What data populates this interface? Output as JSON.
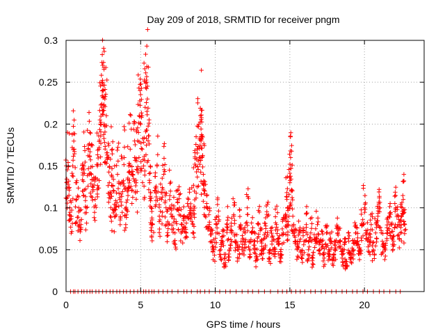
{
  "chart_data": {
    "type": "scatter",
    "title": "Day 209 of 2018, SRMTID for receiver pngm",
    "xlabel": "GPS time / hours",
    "ylabel": "SRMTID / TECUs",
    "xlim": [
      0,
      24
    ],
    "ylim": [
      0,
      0.3
    ],
    "xticks": [
      0,
      5,
      10,
      15,
      20
    ],
    "xtick_labels": [
      "0",
      "5",
      "10",
      "15",
      "20"
    ],
    "yticks": [
      0,
      0.05,
      0.1,
      0.15,
      0.2,
      0.25,
      0.3
    ],
    "ytick_labels": [
      "0",
      "0.05",
      "0.1",
      "0.15",
      "0.2",
      "0.25",
      "0.3"
    ],
    "grid": true,
    "marker": "+",
    "marker_color": "#ff0000",
    "series": [
      {
        "name": "SRMTID",
        "x": [
          0.05,
          0.15,
          0.25,
          0.35,
          0.45,
          0.55,
          0.7,
          0.85,
          1.0,
          1.1,
          1.2,
          1.35,
          1.5,
          1.6,
          1.7,
          1.8,
          1.95,
          2.1,
          2.2,
          2.3,
          2.4,
          2.45,
          2.5,
          2.55,
          2.6,
          2.7,
          2.8,
          2.9,
          3.0,
          3.1,
          3.2,
          3.3,
          3.45,
          3.6,
          3.75,
          3.9,
          4.0,
          4.1,
          4.2,
          4.3,
          4.45,
          4.6,
          4.7,
          4.8,
          4.9,
          5.0,
          5.1,
          5.2,
          5.3,
          5.4,
          5.45,
          5.5,
          5.6,
          5.7,
          5.8,
          5.95,
          6.1,
          6.25,
          6.4,
          6.55,
          6.7,
          6.85,
          7.0,
          7.15,
          7.3,
          7.45,
          7.6,
          7.75,
          7.9,
          8.05,
          8.2,
          8.35,
          8.5,
          8.6,
          8.7,
          8.8,
          8.9,
          9.0,
          9.05,
          9.1,
          9.2,
          9.3,
          9.45,
          9.6,
          9.75,
          9.9,
          10.05,
          10.2,
          10.35,
          10.5,
          10.65,
          10.8,
          10.95,
          11.1,
          11.25,
          11.4,
          11.55,
          11.7,
          11.85,
          12.0,
          12.15,
          12.3,
          12.45,
          12.6,
          12.75,
          12.9,
          13.05,
          13.2,
          13.35,
          13.5,
          13.65,
          13.8,
          13.95,
          14.1,
          14.25,
          14.4,
          14.55,
          14.7,
          14.8,
          14.9,
          15.0,
          15.05,
          15.1,
          15.2,
          15.35,
          15.5,
          15.65,
          15.8,
          15.95,
          16.1,
          16.25,
          16.4,
          16.55,
          16.7,
          16.85,
          17.0,
          17.15,
          17.3,
          17.45,
          17.6,
          17.75,
          17.9,
          18.05,
          18.2,
          18.35,
          18.5,
          18.65,
          18.8,
          18.95,
          19.1,
          19.25,
          19.4,
          19.55,
          19.7,
          19.85,
          20.0,
          20.15,
          20.3,
          20.45,
          20.6,
          20.75,
          20.9,
          21.05,
          21.2,
          21.35,
          21.5,
          21.65,
          21.8,
          21.95,
          22.1,
          22.25,
          22.4,
          22.5,
          22.6,
          22.7
        ],
        "y": [
          0.13,
          0.15,
          0.1,
          0.09,
          0.15,
          0.17,
          0.11,
          0.1,
          0.08,
          0.12,
          0.15,
          0.1,
          0.17,
          0.19,
          0.14,
          0.12,
          0.11,
          0.15,
          0.17,
          0.2,
          0.22,
          0.25,
          0.24,
          0.2,
          0.23,
          0.21,
          0.16,
          0.13,
          0.1,
          0.17,
          0.12,
          0.09,
          0.14,
          0.11,
          0.13,
          0.16,
          0.08,
          0.12,
          0.15,
          0.17,
          0.14,
          0.16,
          0.13,
          0.18,
          0.21,
          0.2,
          0.17,
          0.15,
          0.22,
          0.25,
          0.23,
          0.18,
          0.13,
          0.1,
          0.08,
          0.12,
          0.15,
          0.09,
          0.11,
          0.14,
          0.1,
          0.08,
          0.12,
          0.09,
          0.07,
          0.11,
          0.1,
          0.08,
          0.09,
          0.07,
          0.11,
          0.1,
          0.08,
          0.12,
          0.15,
          0.17,
          0.2,
          0.21,
          0.18,
          0.16,
          0.14,
          0.12,
          0.1,
          0.08,
          0.06,
          0.05,
          0.07,
          0.09,
          0.05,
          0.06,
          0.04,
          0.08,
          0.05,
          0.07,
          0.09,
          0.06,
          0.05,
          0.08,
          0.06,
          0.07,
          0.1,
          0.05,
          0.07,
          0.06,
          0.04,
          0.08,
          0.06,
          0.05,
          0.07,
          0.09,
          0.04,
          0.06,
          0.05,
          0.08,
          0.06,
          0.04,
          0.07,
          0.09,
          0.11,
          0.08,
          0.13,
          0.16,
          0.12,
          0.09,
          0.06,
          0.05,
          0.07,
          0.04,
          0.06,
          0.08,
          0.05,
          0.07,
          0.04,
          0.06,
          0.08,
          0.05,
          0.06,
          0.04,
          0.07,
          0.05,
          0.06,
          0.04,
          0.05,
          0.07,
          0.06,
          0.04,
          0.05,
          0.03,
          0.06,
          0.04,
          0.05,
          0.07,
          0.06,
          0.05,
          0.08,
          0.1,
          0.07,
          0.06,
          0.08,
          0.05,
          0.07,
          0.09,
          0.1,
          0.06,
          0.05,
          0.07,
          0.09,
          0.08,
          0.06,
          0.1,
          0.08,
          0.07,
          0.09,
          0.11,
          0.08
        ]
      }
    ],
    "zero_points_x": [
      0.3,
      0.5,
      0.6,
      0.8,
      1.05,
      1.2,
      1.4,
      1.6,
      1.75,
      2.0,
      2.2,
      2.45,
      2.7,
      2.95,
      3.15,
      3.4,
      3.6,
      3.85,
      4.05,
      4.3,
      4.55,
      4.8,
      5.0,
      5.2,
      5.35,
      5.55,
      5.75,
      5.9,
      6.2,
      6.5,
      6.8,
      7.1,
      7.5,
      7.9,
      8.1,
      8.4,
      8.8,
      9.0,
      9.3,
      9.6,
      10.0,
      10.3,
      10.7,
      11.0,
      11.4,
      11.8,
      12.2,
      12.5,
      12.9,
      13.3,
      13.7,
      14.2,
      14.5,
      14.8,
      15.1,
      15.4,
      15.7,
      16.0,
      16.4,
      16.7,
      17.1,
      17.4,
      17.8,
      18.1,
      18.5,
      18.8,
      19.2,
      19.5,
      19.9,
      20.2,
      20.6,
      21.0,
      21.3,
      21.7,
      22.1,
      22.4
    ]
  }
}
